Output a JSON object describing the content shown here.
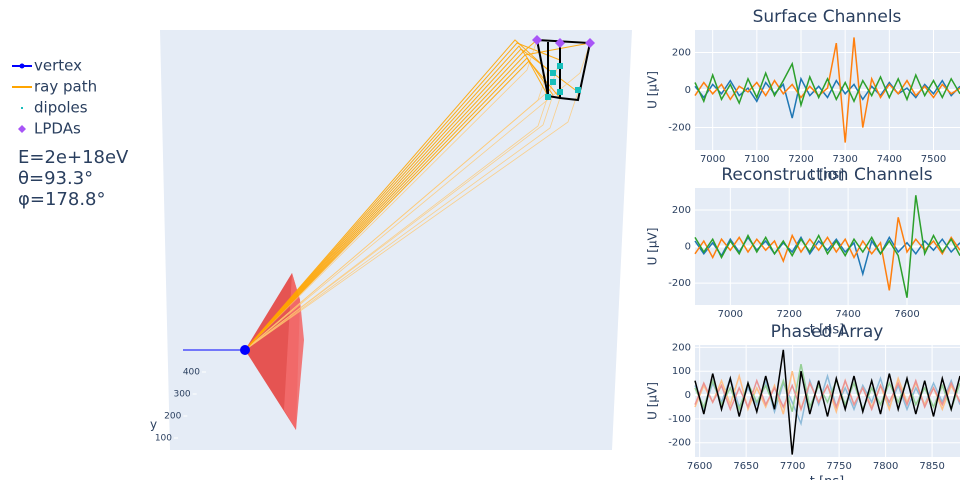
{
  "chart_data": [
    {
      "type": "scatter3d",
      "legend": [
        {
          "name": "vertex",
          "color": "#0000ff"
        },
        {
          "name": "ray path",
          "color": "#ffa500"
        },
        {
          "name": "dipoles",
          "color": "#17bebb"
        },
        {
          "name": "LPDAs",
          "color": "#a855f7"
        }
      ],
      "annotations": [
        "E=2e+18eV",
        "θ=93.3°",
        "φ=178.8°"
      ],
      "y_label": "y",
      "ylim": [
        100,
        400
      ],
      "yticks": [
        100,
        200,
        300,
        400
      ]
    },
    {
      "type": "line",
      "title": "Surface Channels",
      "x_label": "t [ns]",
      "y_label": "U [µV]",
      "x": [
        6960,
        6980,
        7000,
        7020,
        7040,
        7060,
        7080,
        7100,
        7120,
        7140,
        7160,
        7180,
        7200,
        7220,
        7240,
        7260,
        7280,
        7300,
        7320,
        7340,
        7360,
        7380,
        7400,
        7420,
        7440,
        7460,
        7480,
        7500,
        7520,
        7540,
        7560
      ],
      "xlim": [
        6960,
        7560
      ],
      "xticks": [
        7000,
        7100,
        7200,
        7300,
        7400,
        7500
      ],
      "ylim": [
        -320,
        320
      ],
      "yticks": [
        -200,
        0,
        200
      ],
      "series": [
        {
          "color": "#1f77b4",
          "values": [
            20,
            -40,
            30,
            -20,
            50,
            -30,
            10,
            -60,
            40,
            -20,
            30,
            -150,
            60,
            -30,
            20,
            -40,
            50,
            -20,
            30,
            -50,
            20,
            -30,
            40,
            -20,
            10,
            -40,
            30,
            -20,
            50,
            -30,
            20
          ]
        },
        {
          "color": "#ff7f0e",
          "values": [
            -30,
            40,
            -20,
            30,
            -50,
            20,
            -10,
            40,
            -30,
            50,
            -20,
            30,
            -40,
            20,
            -30,
            10,
            250,
            -280,
            280,
            -200,
            60,
            -40,
            30,
            -20,
            50,
            -30,
            20,
            -40,
            30,
            -20,
            10
          ]
        },
        {
          "color": "#2ca02c",
          "values": [
            40,
            -60,
            80,
            -50,
            30,
            -70,
            60,
            -40,
            90,
            -30,
            50,
            140,
            -80,
            70,
            -40,
            60,
            -50,
            40,
            -60,
            50,
            -30,
            70,
            -40,
            60,
            -50,
            80,
            -30,
            50,
            -40,
            60,
            -20
          ]
        }
      ]
    },
    {
      "type": "line",
      "title": "Reconstruction Channels",
      "x_label": "t [ns]",
      "y_label": "U [µV]",
      "x": [
        6880,
        6910,
        6940,
        6970,
        7000,
        7030,
        7060,
        7090,
        7120,
        7150,
        7180,
        7210,
        7240,
        7270,
        7300,
        7330,
        7360,
        7390,
        7420,
        7450,
        7480,
        7510,
        7540,
        7570,
        7600,
        7630,
        7660,
        7690,
        7720,
        7750,
        7780
      ],
      "xlim": [
        6880,
        7780
      ],
      "xticks": [
        7000,
        7200,
        7400,
        7600
      ],
      "ylim": [
        -320,
        320
      ],
      "yticks": [
        -200,
        0,
        200
      ],
      "series": [
        {
          "color": "#1f77b4",
          "values": [
            30,
            -40,
            20,
            -50,
            40,
            -30,
            50,
            -20,
            30,
            -40,
            20,
            -30,
            50,
            -40,
            30,
            -20,
            40,
            -30,
            20,
            -150,
            30,
            -40,
            50,
            -30,
            20,
            -40,
            30,
            -20,
            40,
            -30,
            20
          ]
        },
        {
          "color": "#ff7f0e",
          "values": [
            -40,
            30,
            -60,
            40,
            -20,
            50,
            -30,
            40,
            -20,
            30,
            -80,
            60,
            -30,
            40,
            -20,
            50,
            -30,
            40,
            -60,
            30,
            -40,
            20,
            -240,
            160,
            -30,
            40,
            -20,
            30,
            -40,
            50,
            -20
          ]
        },
        {
          "color": "#2ca02c",
          "values": [
            50,
            -30,
            40,
            -60,
            30,
            -40,
            60,
            -30,
            50,
            -40,
            30,
            -50,
            40,
            -30,
            60,
            -40,
            30,
            -50,
            40,
            -30,
            50,
            -40,
            30,
            -50,
            -280,
            280,
            -40,
            60,
            -30,
            40,
            -50
          ]
        }
      ]
    },
    {
      "type": "line",
      "title": "Phased Array",
      "x_label": "t [ns]",
      "y_label": "U [µV]",
      "x": [
        7595,
        7604.5,
        7614,
        7623.5,
        7633,
        7642.5,
        7652,
        7661.5,
        7671,
        7680.5,
        7690,
        7699.5,
        7709,
        7718.5,
        7728,
        7737.5,
        7747,
        7756.5,
        7766,
        7775.5,
        7785,
        7794.5,
        7804,
        7813.5,
        7823,
        7832.5,
        7842,
        7851.5,
        7861,
        7870.5,
        7880
      ],
      "xlim": [
        7595,
        7880
      ],
      "xticks": [
        7600,
        7650,
        7700,
        7750,
        7800,
        7850
      ],
      "ylim": [
        -260,
        210
      ],
      "yticks": [
        -200,
        -100,
        0,
        100,
        200
      ],
      "series": [
        {
          "color": "#8fbbd9",
          "values": [
            40,
            -60,
            50,
            -30,
            70,
            -50,
            30,
            -40,
            60,
            -70,
            50,
            -30,
            -120,
            60,
            -40,
            80,
            -50,
            30,
            -60,
            40,
            -30,
            70,
            -50,
            40,
            -60,
            30,
            -40,
            50,
            -30,
            60,
            -40
          ]
        },
        {
          "color": "#ffbf86",
          "values": [
            -50,
            40,
            -30,
            60,
            -40,
            80,
            -60,
            30,
            -50,
            40,
            -80,
            100,
            -60,
            50,
            -30,
            40,
            -70,
            60,
            -40,
            30,
            -50,
            40,
            -60,
            70,
            -30,
            50,
            -40,
            30,
            -60,
            40,
            -30
          ]
        },
        {
          "color": "#95cf95",
          "values": [
            30,
            -50,
            60,
            -40,
            30,
            -60,
            50,
            -30,
            40,
            -50,
            60,
            -70,
            130,
            -50,
            40,
            -30,
            60,
            -40,
            50,
            -60,
            30,
            -40,
            50,
            -30,
            60,
            -40,
            30,
            -50,
            40,
            -60,
            50
          ]
        },
        {
          "color": "#ea9393",
          "values": [
            -40,
            50,
            -30,
            40,
            -60,
            30,
            -50,
            60,
            -40,
            30,
            -50,
            40,
            -60,
            50,
            -30,
            40,
            -50,
            60,
            -40,
            30,
            -60,
            40,
            -30,
            50,
            -40,
            60,
            -50,
            30,
            -40,
            50,
            -30
          ]
        },
        {
          "color": "#000000",
          "values": [
            60,
            -80,
            90,
            -60,
            70,
            -90,
            50,
            -70,
            80,
            -60,
            190,
            -250,
            100,
            -80,
            60,
            -90,
            70,
            -60,
            80,
            -70,
            60,
            -80,
            90,
            -60,
            70,
            -80,
            60,
            -90,
            70,
            -60,
            80
          ]
        }
      ]
    }
  ]
}
